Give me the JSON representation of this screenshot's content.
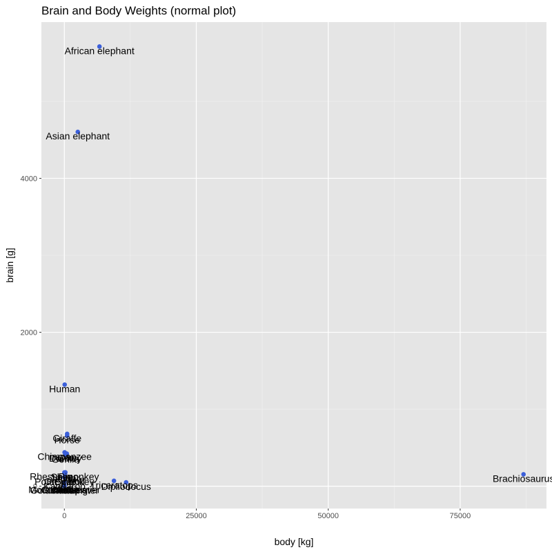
{
  "chart_data": {
    "type": "scatter",
    "title": "Brain and Body Weights (normal plot)",
    "xlabel": "body [kg]",
    "ylabel": "brain [g]",
    "xlim": [
      -4350,
      91350
    ],
    "ylim": [
      -290,
      6030
    ],
    "x_ticks": [
      0,
      25000,
      50000,
      75000
    ],
    "x_tick_labels": [
      "0",
      "25000",
      "50000",
      "75000"
    ],
    "y_ticks": [
      0,
      2000,
      4000
    ],
    "y_tick_labels": [
      "0",
      "2000",
      "4000"
    ],
    "grid": true,
    "point_color": "#3b5fd9",
    "panel_color": "#e5e5e5",
    "points": [
      {
        "label": "Mountain beaver",
        "x": 1.35,
        "y": 8.1
      },
      {
        "label": "Cow",
        "x": 465,
        "y": 423
      },
      {
        "label": "Grey wolf",
        "x": 36.33,
        "y": 119.5
      },
      {
        "label": "Goat",
        "x": 27.66,
        "y": 115
      },
      {
        "label": "Guinea pig",
        "x": 1.04,
        "y": 5.5
      },
      {
        "label": "Dipliodocus",
        "x": 11700,
        "y": 50
      },
      {
        "label": "Asian elephant",
        "x": 2547,
        "y": 4603
      },
      {
        "label": "Donkey",
        "x": 187.1,
        "y": 419
      },
      {
        "label": "Horse",
        "x": 521,
        "y": 655
      },
      {
        "label": "Potar monkey",
        "x": 10,
        "y": 115
      },
      {
        "label": "Cat",
        "x": 3.3,
        "y": 25.6
      },
      {
        "label": "Giraffe",
        "x": 529,
        "y": 680
      },
      {
        "label": "Gorilla",
        "x": 207,
        "y": 406
      },
      {
        "label": "Human",
        "x": 62,
        "y": 1320
      },
      {
        "label": "African elephant",
        "x": 6654,
        "y": 5712
      },
      {
        "label": "Triceratops",
        "x": 9400,
        "y": 70
      },
      {
        "label": "Rhesus monkey",
        "x": 6.8,
        "y": 179
      },
      {
        "label": "Kangaroo",
        "x": 35,
        "y": 56
      },
      {
        "label": "Golden hamster",
        "x": 0.12,
        "y": 1
      },
      {
        "label": "Mouse",
        "x": 0.023,
        "y": 0.4
      },
      {
        "label": "Rabbit",
        "x": 2.5,
        "y": 12.1
      },
      {
        "label": "Sheep",
        "x": 55.5,
        "y": 175
      },
      {
        "label": "Jaguar",
        "x": 100,
        "y": 157
      },
      {
        "label": "Chimpanzee",
        "x": 52.16,
        "y": 440
      },
      {
        "label": "Rat",
        "x": 0.28,
        "y": 1.9
      },
      {
        "label": "Brachiosaurus",
        "x": 87000,
        "y": 154.5
      },
      {
        "label": "Mole",
        "x": 0.122,
        "y": 3
      },
      {
        "label": "Pig",
        "x": 192,
        "y": 180
      }
    ]
  }
}
